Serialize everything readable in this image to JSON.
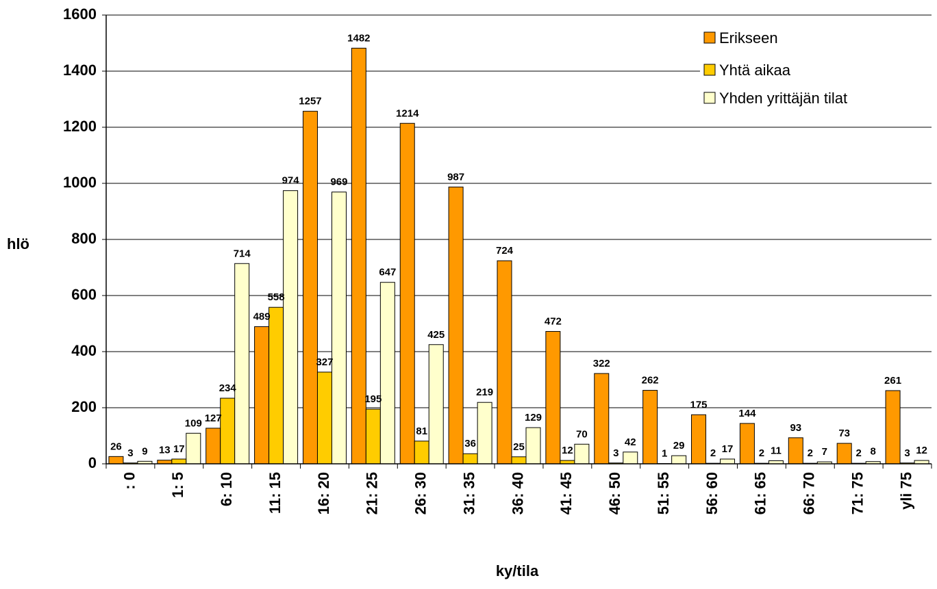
{
  "chart_data": {
    "type": "bar",
    "title": "",
    "xlabel": "ky/tila",
    "ylabel": "hlö",
    "ylim": [
      0,
      1600
    ],
    "yticks": [
      "0",
      "200",
      "400",
      "600",
      "800",
      "1000",
      "1200",
      "1400",
      "1600"
    ],
    "grid": true,
    "legend_position": "top-right",
    "categories": [
      ": 0",
      "1: 5",
      "6: 10",
      "11: 15",
      "16: 20",
      "21: 25",
      "26: 30",
      "31: 35",
      "36: 40",
      "41: 45",
      "46: 50",
      "51: 55",
      "56: 60",
      "61: 65",
      "66: 70",
      "71: 75",
      "yli 75"
    ],
    "series": [
      {
        "name": "Erikseen",
        "color": "#FF9900",
        "values": [
          26,
          13,
          127,
          489,
          1257,
          1482,
          1214,
          987,
          724,
          472,
          322,
          262,
          175,
          144,
          93,
          73,
          261
        ]
      },
      {
        "name": "Yhtä aikaa",
        "color": "#FFCC00",
        "values": [
          3,
          17,
          234,
          558,
          327,
          195,
          81,
          36,
          25,
          12,
          3,
          1,
          2,
          2,
          2,
          2,
          3
        ]
      },
      {
        "name": "Yhden yrittäjän tilat",
        "color": "#FFFFCC",
        "values": [
          9,
          109,
          714,
          974,
          969,
          647,
          425,
          219,
          129,
          70,
          42,
          29,
          17,
          11,
          7,
          8,
          12
        ]
      }
    ]
  }
}
